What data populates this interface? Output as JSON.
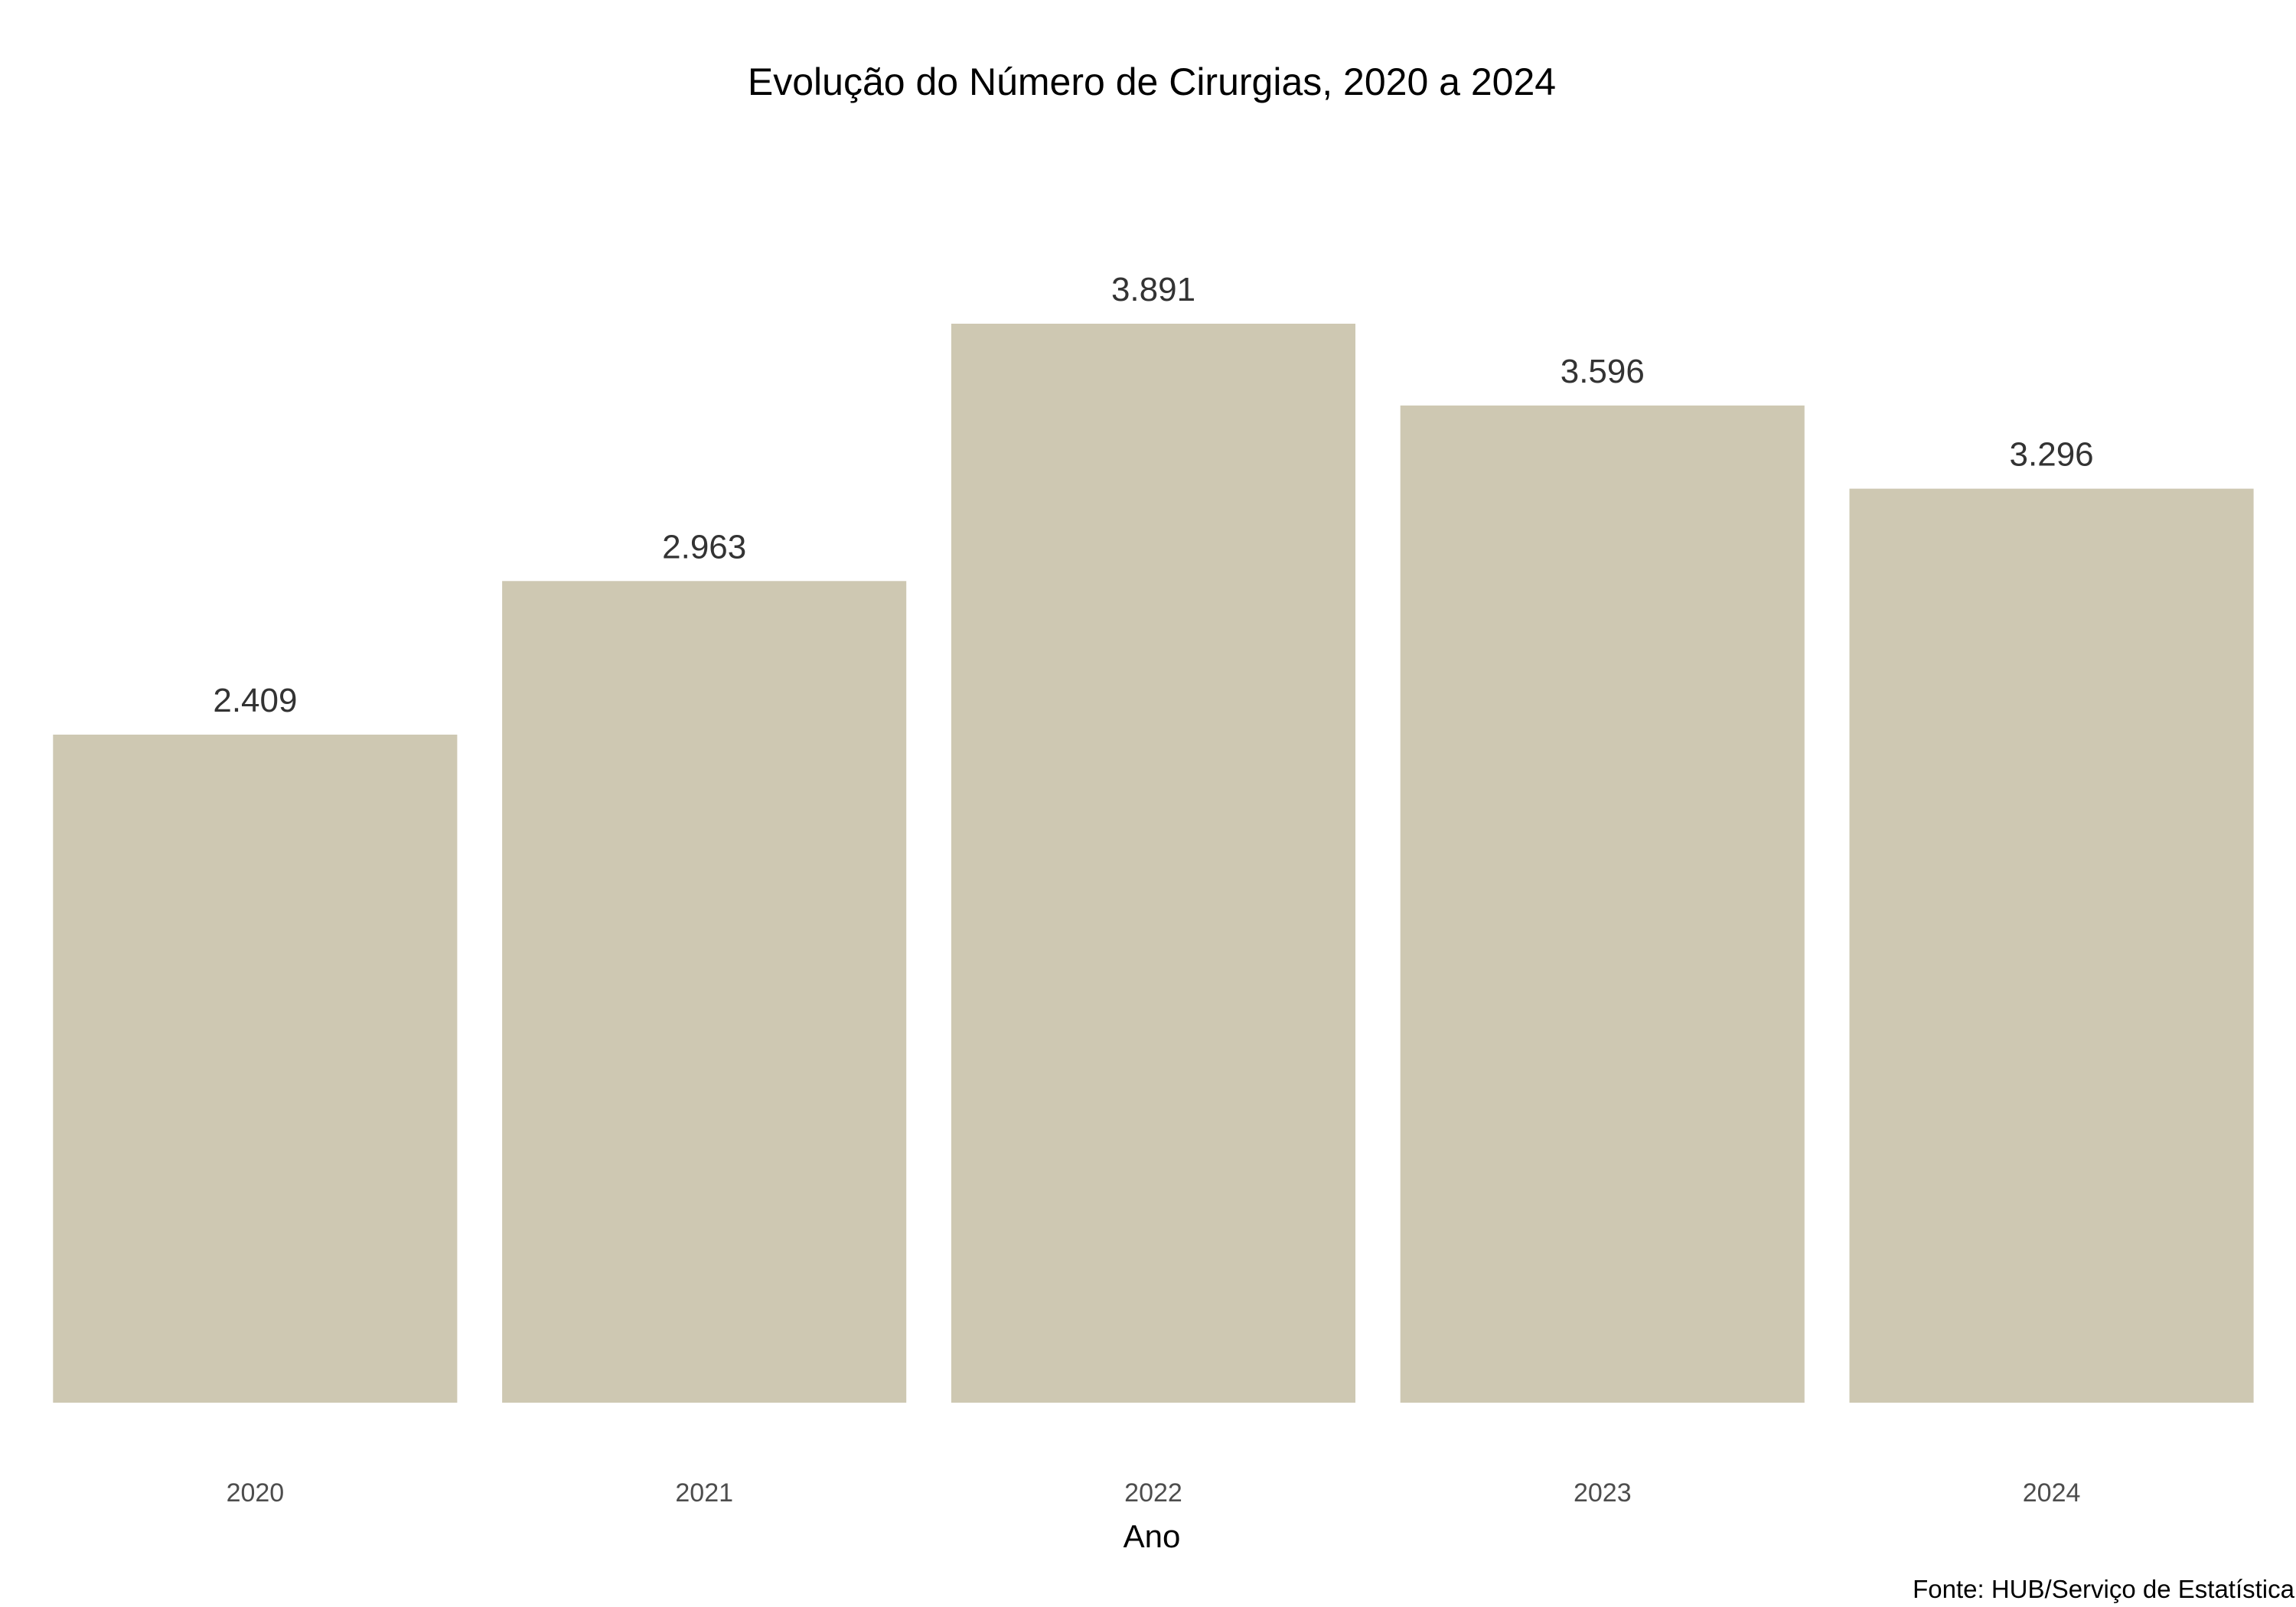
{
  "chart_data": {
    "type": "bar",
    "title": "Evolução do Número de Cirurgias, 2020 a 2024",
    "xlabel": "Ano",
    "ylabel": "",
    "categories": [
      "2020",
      "2021",
      "2022",
      "2023",
      "2024"
    ],
    "values": [
      2409,
      2963,
      3891,
      3596,
      3296
    ],
    "data_labels": [
      "2.409",
      "2.963",
      "3.891",
      "3.596",
      "3.296"
    ],
    "ylim": [
      0,
      4250
    ],
    "grid": false,
    "legend": "none",
    "bar_color": "#cec8b2",
    "caption": "Fonte: HUB/Serviço de Estatística"
  }
}
